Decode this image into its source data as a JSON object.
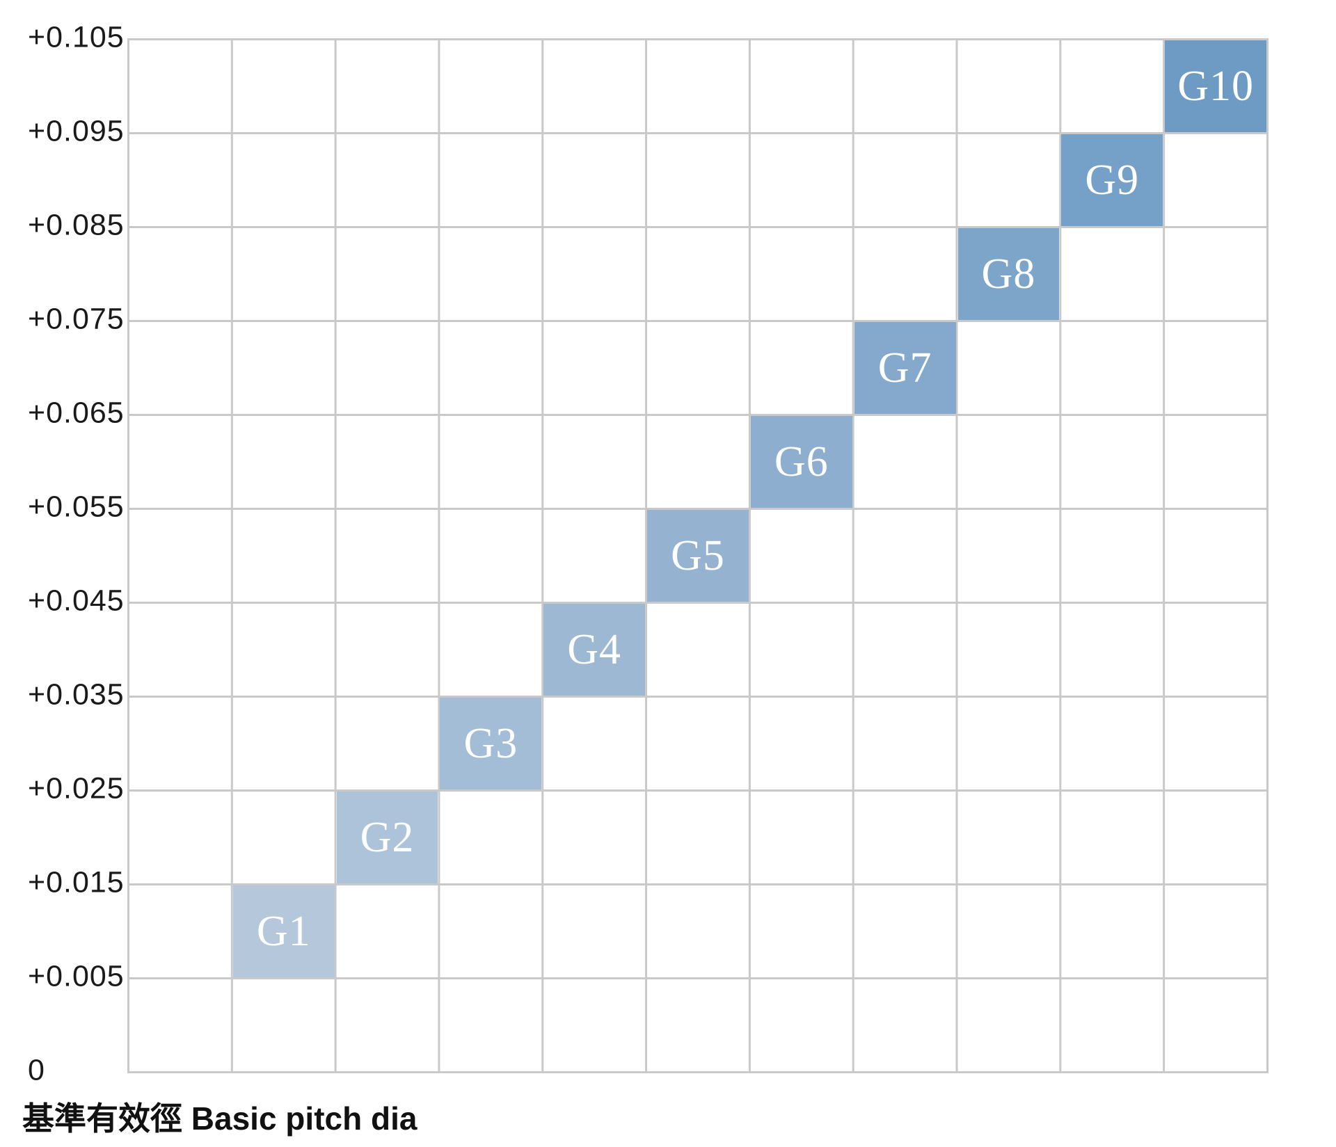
{
  "chart_data": {
    "type": "bar",
    "subtype": "floating-step-ranges",
    "title": "",
    "xlabel": "基準有效徑 Basic pitch dia",
    "ylabel": "",
    "ylim": [
      0,
      0.105
    ],
    "grid": true,
    "legend": false,
    "y_tick_labels": [
      "+0.105",
      "+0.095",
      "+0.085",
      "+0.075",
      "+0.065",
      "+0.055",
      "+0.045",
      "+0.035",
      "+0.025",
      "+0.015",
      "+0.005",
      "0"
    ],
    "grades": [
      {
        "label": "G1",
        "range_low": 0.005,
        "range_high": 0.015,
        "color": "#b4c7db"
      },
      {
        "label": "G2",
        "range_low": 0.015,
        "range_high": 0.025,
        "color": "#adc3d9"
      },
      {
        "label": "G3",
        "range_low": 0.025,
        "range_high": 0.035,
        "color": "#a4bdd6"
      },
      {
        "label": "G4",
        "range_low": 0.035,
        "range_high": 0.045,
        "color": "#9cb8d3"
      },
      {
        "label": "G5",
        "range_low": 0.045,
        "range_high": 0.055,
        "color": "#95b3d1"
      },
      {
        "label": "G6",
        "range_low": 0.055,
        "range_high": 0.065,
        "color": "#8daece"
      },
      {
        "label": "G7",
        "range_low": 0.065,
        "range_high": 0.075,
        "color": "#85a9cc"
      },
      {
        "label": "G8",
        "range_low": 0.075,
        "range_high": 0.085,
        "color": "#7da4c9"
      },
      {
        "label": "G9",
        "range_low": 0.085,
        "range_high": 0.095,
        "color": "#75a0c7"
      },
      {
        "label": "G10",
        "range_low": 0.095,
        "range_high": 0.105,
        "color": "#6d9bc4"
      }
    ],
    "colors": {
      "gridline": "#c9c9c9",
      "background": "#ffffff",
      "tick_text": "#1a1a1a",
      "grade_text": "#ffffff"
    }
  }
}
